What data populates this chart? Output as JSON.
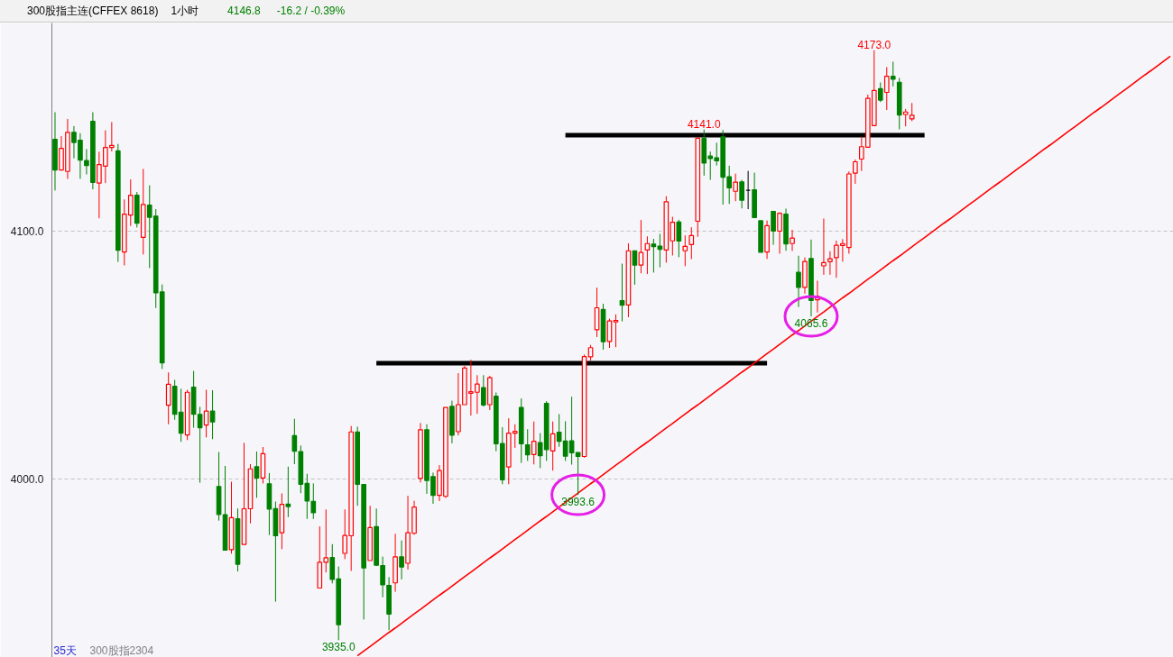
{
  "chart_data": {
    "type": "candlestick",
    "title": "300股指主连(CFFEX 8618)",
    "subtitle": "1小时",
    "categories": [
      null,
      null,
      null,
      null,
      null,
      null,
      null,
      null,
      null,
      null,
      null,
      null,
      null,
      null,
      null,
      null,
      null,
      null,
      null,
      null,
      null,
      null,
      null,
      null,
      null,
      null,
      null,
      null,
      null,
      null,
      null,
      null,
      null,
      null,
      null,
      null,
      null,
      null,
      null,
      null,
      null,
      null,
      null,
      null,
      null,
      null,
      null,
      null,
      null,
      null,
      null,
      null,
      null,
      null,
      null,
      null,
      null,
      null,
      null,
      null,
      null,
      null,
      null,
      null,
      null,
      null,
      null,
      null,
      null,
      null,
      null,
      null,
      null,
      null,
      null,
      null,
      null,
      null,
      null,
      null,
      null,
      null,
      null,
      null,
      null,
      null,
      null,
      null,
      null,
      null,
      null,
      null,
      null,
      null,
      null,
      null,
      null,
      null,
      null,
      null,
      null,
      null,
      null,
      null,
      null,
      null,
      null,
      null,
      null,
      null,
      null,
      null,
      null,
      null,
      null,
      null,
      null,
      null,
      null,
      null,
      null,
      null,
      null,
      null,
      null,
      null,
      null,
      null,
      null,
      null,
      null,
      null,
      null,
      null,
      null,
      null,
      null,
      null,
      null,
      null,
      null,
      null,
      null,
      null,
      null,
      null,
      null,
      null,
      null,
      null,
      null,
      null,
      null,
      null,
      null,
      null,
      null,
      null,
      null,
      null,
      null,
      null,
      null,
      null,
      null,
      null,
      null,
      null,
      null,
      null,
      null,
      null,
      null,
      null,
      null,
      null,
      null,
      null
    ],
    "ohlc": [
      [
        4137.1,
        4148.0,
        4116.4,
        4124.7
      ],
      [
        4124.7,
        4138.4,
        4124.7,
        4133.4
      ],
      [
        4124.1,
        4145.3,
        4121.1,
        4139.9
      ],
      [
        4139.9,
        4142.4,
        4129.4,
        4135.8
      ],
      [
        4136.7,
        4139.5,
        4121.1,
        4128.7
      ],
      [
        4128.5,
        4133.1,
        4122.9,
        4126.5
      ],
      [
        4144.3,
        4148.0,
        4116.9,
        4119.7
      ],
      [
        4119.4,
        4132.0,
        4105.2,
        4126.9
      ],
      [
        4126.2,
        4140.7,
        4119.4,
        4133.8
      ],
      [
        4133.8,
        4144.0,
        4132.2,
        4134.6
      ],
      [
        4132.4,
        4135.2,
        4087.6,
        4092.3
      ],
      [
        4091.6,
        4112.8,
        4086.2,
        4106.9
      ],
      [
        4106.5,
        4120.9,
        4102.1,
        4114.5
      ],
      [
        4114.5,
        4115.8,
        4101.5,
        4103.2
      ],
      [
        4097.5,
        4125.1,
        4090.6,
        4110.8
      ],
      [
        4110.5,
        4118.5,
        4085.1,
        4105.6
      ],
      [
        4106.1,
        4108.9,
        4069.0,
        4075.1
      ],
      [
        4075.5,
        4078.5,
        4044.4,
        4046.9
      ],
      [
        4029.8,
        4043.0,
        4022.1,
        4038.2
      ],
      [
        4037.4,
        4040.0,
        4023.9,
        4026.1
      ],
      [
        4027.0,
        4036.4,
        4015.0,
        4018.5
      ],
      [
        4017.8,
        4036.0,
        4015.7,
        4035.0
      ],
      [
        4037.1,
        4043.6,
        4020.7,
        4026.1
      ],
      [
        4026.1,
        4029.1,
        3998.5,
        4020.7
      ],
      [
        4021.8,
        4036.0,
        4016.8,
        4027.4
      ],
      [
        4027.4,
        4035.8,
        4016.1,
        4023.0
      ],
      [
        3997.0,
        4010.9,
        3983.2,
        3985.7
      ],
      [
        3985.6,
        4005.3,
        3971.3,
        3971.3
      ],
      [
        3971.5,
        3998.9,
        3969.9,
        3984.4
      ],
      [
        3984.0,
        3988.1,
        3962.7,
        3965.6
      ],
      [
        3973.6,
        4014.6,
        3973.6,
        3988.0
      ],
      [
        3988.0,
        4006.0,
        3982.1,
        4004.1
      ],
      [
        4005.0,
        4011.1,
        3992.4,
        4000.4
      ],
      [
        4000.4,
        4012.9,
        3998.2,
        4010.2
      ],
      [
        3998.1,
        4002.4,
        3977.4,
        3987.9
      ],
      [
        3988.1,
        3990.9,
        3950.5,
        3977.1
      ],
      [
        3978.3,
        3994.2,
        3971.7,
        3989.8
      ],
      [
        3989.9,
        4005.0,
        3984.6,
        3988.9
      ],
      [
        4017.5,
        4024.3,
        4006.0,
        4011.2
      ],
      [
        4011.1,
        4013.5,
        3994.3,
        3997.9
      ],
      [
        3998.2,
        4002.1,
        3983.9,
        3991.1
      ],
      [
        3991.0,
        3998.2,
        3983.9,
        3986.4
      ],
      [
        3956.0,
        3980.9,
        3956.0,
        3966.4
      ],
      [
        3966.4,
        3987.7,
        3962.3,
        3968.2
      ],
      [
        3968.3,
        3973.7,
        3957.9,
        3959.5
      ],
      [
        3959.7,
        3964.7,
        3935.0,
        3941.2
      ],
      [
        3970.0,
        3987.7,
        3967.7,
        3977.2
      ],
      [
        3977.1,
        4021.4,
        3962.9,
        4019.0
      ],
      [
        4019.0,
        4021.1,
        3989.2,
        3997.9
      ],
      [
        3997.8,
        3997.8,
        3943.3,
        3964.1
      ],
      [
        3967.1,
        3989.2,
        3967.1,
        3980.4
      ],
      [
        3980.8,
        3988.1,
        3964.9,
        3965.2
      ],
      [
        3965.1,
        3968.7,
        3952.3,
        3957.3
      ],
      [
        3957.1,
        3960.4,
        3939.0,
        3945.5
      ],
      [
        3958.1,
        3977.9,
        3954.5,
        3968.6
      ],
      [
        3968.6,
        3975.2,
        3959.5,
        3964.5
      ],
      [
        3966.0,
        3993.2,
        3963.5,
        3978.3
      ],
      [
        3978.1,
        3991.2,
        3977.5,
        3988.7
      ],
      [
        4000.2,
        4022.6,
        3998.6,
        4019.9
      ],
      [
        4019.9,
        4022.1,
        3994.0,
        3999.4
      ],
      [
        4001.0,
        4002.6,
        3990.0,
        3993.4
      ],
      [
        3993.4,
        4005.6,
        3991.1,
        4003.4
      ],
      [
        3993.0,
        4028.9,
        3992.4,
        4028.9
      ],
      [
        4029.3,
        4031.6,
        4014.4,
        4017.7
      ],
      [
        4019.1,
        4042.7,
        4017.6,
        4030.0
      ],
      [
        4030.0,
        4045.6,
        4030.0,
        4044.8
      ],
      [
        4034.6,
        4048.1,
        4025.6,
        4035.2
      ],
      [
        4035.0,
        4041.9,
        4026.3,
        4038.3
      ],
      [
        4036.9,
        4041.9,
        4029.2,
        4029.9
      ],
      [
        4030.0,
        4041.6,
        4027.8,
        4040.9
      ],
      [
        4033.4,
        4034.9,
        4011.2,
        4014.2
      ],
      [
        4014.3,
        4020.9,
        3997.9,
        3999.7
      ],
      [
        4004.9,
        4024.5,
        3997.9,
        4018.5
      ],
      [
        4018.5,
        4022.1,
        4012.6,
        4019.2
      ],
      [
        4028.9,
        4032.5,
        4006.5,
        4014.2
      ],
      [
        4013.8,
        4020.1,
        4007.3,
        4009.8
      ],
      [
        4009.9,
        4023.2,
        4005.9,
        4015.2
      ],
      [
        4014.7,
        4018.5,
        4004.4,
        4009.4
      ],
      [
        4030.5,
        4031.4,
        4007.3,
        4011.9
      ],
      [
        4011.3,
        4023.2,
        4003.4,
        4018.2
      ],
      [
        4018.9,
        4026.2,
        4013.0,
        4015.2
      ],
      [
        4015.3,
        4023.3,
        4007.3,
        4009.2
      ],
      [
        4015.4,
        4033.2,
        4005.8,
        4010.6
      ],
      [
        4010.7,
        4010.7,
        3993.6,
        4009.1
      ],
      [
        4009.1,
        4050.2,
        4008.6,
        4049.4
      ],
      [
        4049.3,
        4054.1,
        4047.7,
        4053.0
      ],
      [
        4060.2,
        4077.2,
        4057.3,
        4069.1
      ],
      [
        4068.4,
        4070.7,
        4052.2,
        4055.4
      ],
      [
        4055.5,
        4064.7,
        4052.9,
        4063.8
      ],
      [
        4063.4,
        4066.4,
        4053.2,
        4064.0
      ],
      [
        4072.0,
        4086.9,
        4063.6,
        4070.1
      ],
      [
        4070.2,
        4095.1,
        4065.3,
        4092.1
      ],
      [
        4092.1,
        4092.1,
        4078.4,
        4086.3
      ],
      [
        4086.3,
        4104.5,
        4083.0,
        4091.4
      ],
      [
        4092.4,
        4097.9,
        4082.7,
        4095.0
      ],
      [
        4094.8,
        4096.9,
        4083.3,
        4093.8
      ],
      [
        4094.0,
        4098.9,
        4085.4,
        4092.7
      ],
      [
        4092.4,
        4114.1,
        4087.3,
        4111.9
      ],
      [
        4096.1,
        4105.8,
        4090.2,
        4103.6
      ],
      [
        4103.7,
        4104.6,
        4089.5,
        4096.0
      ],
      [
        4092.1,
        4098.3,
        4085.9,
        4093.9
      ],
      [
        4094.6,
        4101.6,
        4088.7,
        4098.2
      ],
      [
        4104.0,
        4137.9,
        4097.7,
        4137.5
      ],
      [
        4137.5,
        4141.0,
        4122.4,
        4127.5
      ],
      [
        4130.3,
        4132.1,
        4120.7,
        4129.3
      ],
      [
        4129.6,
        4135.7,
        4126.5,
        4128.4
      ],
      [
        4138.1,
        4140.8,
        4110.7,
        4121.8
      ],
      [
        4122.0,
        4126.4,
        4111.0,
        4117.5
      ],
      [
        4116.1,
        4123.2,
        4112.1,
        4119.8
      ],
      [
        4119.9,
        4120.7,
        4109.2,
        4112.5
      ],
      [
        4116.5,
        4124.3,
        4108.9,
        4116.5
      ],
      [
        4116.7,
        4123.6,
        4105.3,
        4105.5
      ],
      [
        4104.2,
        4104.2,
        4091.5,
        4091.5
      ],
      [
        4091.6,
        4104.3,
        4088.8,
        4102.2
      ],
      [
        4108.0,
        4108.0,
        4094.5,
        4100.0
      ],
      [
        4100.0,
        4107.6,
        4090.9,
        4107.2
      ],
      [
        4106.9,
        4109.1,
        4092.1,
        4094.9
      ],
      [
        4095.0,
        4100.5,
        4092.0,
        4097.2
      ],
      [
        4083.4,
        4090.1,
        4069.4,
        4077.3
      ],
      [
        4077.3,
        4089.4,
        4074.8,
        4087.8
      ],
      [
        4089.0,
        4096.6,
        4065.6,
        4072.0
      ],
      [
        4072.3,
        4080.0,
        4067.2,
        4073.7
      ],
      [
        4086.0,
        4105.1,
        4082.4,
        4087.3
      ],
      [
        4087.7,
        4091.9,
        4082.4,
        4088.9
      ],
      [
        4089.3,
        4096.2,
        4081.2,
        4094.3
      ],
      [
        4094.2,
        4096.8,
        4087.7,
        4095.0
      ],
      [
        4093.4,
        4124.1,
        4090.9,
        4123.1
      ],
      [
        4123.4,
        4128.9,
        4119.1,
        4128.0
      ],
      [
        4129.1,
        4138.1,
        4124.3,
        4134.1
      ],
      [
        4133.9,
        4155.1,
        4133.9,
        4153.6
      ],
      [
        4142.6,
        4173.0,
        4142.6,
        4156.8
      ],
      [
        4157.5,
        4160.0,
        4152.1,
        4152.9
      ],
      [
        4156.0,
        4166.2,
        4148.9,
        4162.5
      ],
      [
        4162.5,
        4168.4,
        4158.4,
        4161.3
      ],
      [
        4160.1,
        4161.8,
        4141.1,
        4146.9
      ],
      [
        4147.1,
        4149.3,
        4142.3,
        4148.1
      ],
      [
        4145.3,
        4151.7,
        4144.4,
        4146.8
      ],
      null,
      null,
      null,
      null,
      null,
      null,
      null,
      null,
      null,
      null,
      null,
      null,
      null,
      null,
      null,
      null,
      null,
      null,
      null,
      null,
      null,
      null,
      null,
      null,
      null,
      null,
      null,
      null,
      null,
      null,
      null,
      null,
      null,
      null,
      null,
      null,
      null,
      null,
      null,
      null,
      null
    ],
    "colors": [
      "#008000",
      "#ff0000",
      "#ff0000",
      "#008000",
      "#008000",
      "#008000",
      "#008000",
      "#ff0000",
      "#ff0000",
      "#ff0000",
      "#008000",
      "#ff0000",
      "#ff0000",
      "#008000",
      "#ff0000",
      "#008000",
      "#008000",
      "#008000",
      "#ff0000",
      "#008000",
      "#008000",
      "#ff0000",
      "#008000",
      "#008000",
      "#ff0000",
      "#008000",
      "#008000",
      "#008000",
      "#ff0000",
      "#008000",
      "#ff0000",
      "#ff0000",
      "#008000",
      "#ff0000",
      "#008000",
      "#008000",
      "#ff0000",
      "#008000",
      "#008000",
      "#008000",
      "#008000",
      "#008000",
      "#ff0000",
      "#ff0000",
      "#008000",
      "#008000",
      "#ff0000",
      "#ff0000",
      "#008000",
      "#008000",
      "#ff0000",
      "#008000",
      "#008000",
      "#008000",
      "#ff0000",
      "#008000",
      "#ff0000",
      "#ff0000",
      "#ff0000",
      "#008000",
      "#008000",
      "#ff0000",
      "#ff0000",
      "#008000",
      "#ff0000",
      "#ff0000",
      "#ff0000",
      "#ff0000",
      "#008000",
      "#ff0000",
      "#008000",
      "#008000",
      "#ff0000",
      "#ff0000",
      "#008000",
      "#008000",
      "#ff0000",
      "#008000",
      "#008000",
      "#ff0000",
      "#008000",
      "#008000",
      "#008000",
      "#008000",
      "#ff0000",
      "#ff0000",
      "#ff0000",
      "#008000",
      "#ff0000",
      "#ff0000",
      "#008000",
      "#ff0000",
      "#008000",
      "#ff0000",
      "#ff0000",
      "#008000",
      "#008000",
      "#ff0000",
      "#ff0000",
      "#008000",
      "#ff0000",
      "#ff0000",
      "#ff0000",
      "#008000",
      "#008000",
      "#008000",
      "#008000",
      "#008000",
      "#ff0000",
      "#008000",
      "#000000",
      "#008000",
      "#008000",
      "#ff0000",
      "#008000",
      "#ff0000",
      "#008000",
      "#ff0000",
      "#008000",
      "#ff0000",
      "#008000",
      "#ff0000",
      "#ff0000",
      "#ff0000",
      "#ff0000",
      "#ff0000",
      "#ff0000",
      "#ff0000",
      "#ff0000",
      "#ff0000",
      "#ff0000",
      "#008000",
      "#ff0000",
      "#008000",
      "#008000",
      "#ff0000",
      "#ff0000",
      null,
      null,
      null,
      null,
      null,
      null,
      null,
      null,
      null,
      null,
      null,
      null,
      null,
      null,
      null,
      null,
      null,
      null,
      null,
      null,
      null,
      null,
      null,
      null,
      null,
      null,
      null,
      null,
      null,
      null,
      null,
      null,
      null,
      null,
      null,
      null,
      null,
      null,
      null,
      null,
      null
    ],
    "series": [
      {
        "type": "line",
        "color": "#000000",
        "values": [
          null,
          null,
          null,
          null,
          null,
          null,
          null,
          null,
          null,
          null,
          null,
          null,
          null,
          null,
          null,
          null,
          null,
          null,
          null,
          null,
          null,
          null,
          null,
          null,
          null,
          null,
          null,
          null,
          null,
          null,
          null,
          null,
          null,
          null,
          null,
          null,
          null,
          null,
          null,
          null,
          null,
          null,
          null,
          null,
          null,
          null,
          null,
          null,
          null,
          null,
          null,
          4046.7,
          4046.7,
          4046.7,
          4046.7,
          4046.7,
          4046.7,
          4046.7,
          4046.7,
          4046.7,
          4046.7,
          4046.7,
          4046.7,
          4046.7,
          4046.7,
          4046.7,
          4046.7,
          4046.7,
          4046.7,
          4046.7,
          4046.7,
          4046.7,
          4046.7,
          4046.7,
          4046.7,
          4046.7,
          4046.7,
          4046.7,
          4046.7,
          4046.7,
          4046.7,
          4046.7,
          4046.7,
          4046.7,
          4046.7,
          4046.7,
          4046.7,
          4046.7,
          4046.7,
          4046.7,
          4046.7,
          4046.7,
          4046.7,
          4046.7,
          4046.7,
          4046.7,
          4046.7,
          4046.7,
          4046.7,
          4046.7,
          4046.7,
          4046.7,
          4046.7,
          4046.7,
          4046.7,
          4046.7,
          4046.7,
          4046.7,
          4046.7,
          4046.7,
          4046.7,
          4046.7,
          4046.7,
          4046.7,
          null,
          null,
          null,
          null,
          null,
          null,
          null,
          null,
          null,
          null,
          null,
          null,
          null,
          null,
          null,
          null,
          null,
          null,
          null,
          null,
          null,
          null,
          null,
          null,
          null,
          null,
          null,
          null,
          null,
          null,
          null,
          null,
          null,
          null,
          null,
          null,
          null,
          null,
          null,
          null,
          null,
          null,
          null,
          null,
          null,
          null,
          null,
          null,
          null,
          null,
          null,
          null,
          null,
          null,
          null,
          null,
          null,
          null,
          null,
          null,
          null,
          null,
          null,
          null
        ]
      },
      {
        "type": "line",
        "color": "#000000",
        "values": [
          null,
          null,
          null,
          null,
          null,
          null,
          null,
          null,
          null,
          null,
          null,
          null,
          null,
          null,
          null,
          null,
          null,
          null,
          null,
          null,
          null,
          null,
          null,
          null,
          null,
          null,
          null,
          null,
          null,
          null,
          null,
          null,
          null,
          null,
          null,
          null,
          null,
          null,
          null,
          null,
          null,
          null,
          null,
          null,
          null,
          null,
          null,
          null,
          null,
          null,
          null,
          null,
          null,
          null,
          null,
          null,
          null,
          null,
          null,
          null,
          null,
          null,
          null,
          null,
          null,
          null,
          null,
          null,
          null,
          null,
          null,
          null,
          null,
          null,
          null,
          null,
          null,
          null,
          null,
          null,
          null,
          4138.7,
          4138.7,
          4138.7,
          4138.7,
          4138.7,
          4138.7,
          4138.7,
          4138.7,
          4138.7,
          4138.7,
          4138.7,
          4138.7,
          4138.7,
          4138.7,
          4138.7,
          4138.7,
          4138.7,
          4138.7,
          4138.7,
          4138.7,
          4138.7,
          4138.7,
          4138.7,
          4138.7,
          4138.7,
          4138.7,
          4138.7,
          4138.7,
          4138.7,
          4138.7,
          4138.7,
          4138.7,
          4138.7,
          4138.7,
          4138.7,
          4138.7,
          4138.7,
          4138.7,
          4138.7,
          4138.7,
          4138.7,
          4138.7,
          4138.7,
          4138.7,
          4138.7,
          4138.7,
          4138.7,
          4138.7,
          4138.7,
          4138.7,
          4138.7,
          4138.7,
          4138.7,
          4138.7,
          4138.7,
          4138.7,
          4138.7,
          4138.7,
          null,
          null,
          null,
          null,
          null,
          null,
          null,
          null,
          null,
          null,
          null,
          null,
          null,
          null,
          null,
          null,
          null,
          null,
          null,
          null,
          null,
          null,
          null,
          null,
          null,
          null,
          null,
          null,
          null,
          null,
          null,
          null,
          null,
          null,
          null,
          null,
          null,
          null,
          null
        ]
      },
      {
        "type": "line",
        "color": "#ff0000",
        "values": [
          null,
          null,
          null,
          null,
          null,
          null,
          null,
          null,
          null,
          null,
          null,
          null,
          null,
          null,
          null,
          null,
          null,
          null,
          null,
          null,
          null,
          null,
          null,
          null,
          null,
          null,
          null,
          null,
          null,
          null,
          null,
          null,
          null,
          null,
          null,
          null,
          null,
          null,
          null,
          null,
          null,
          null,
          null,
          null,
          null,
          null,
          null,
          null,
          3928.7,
          3930.6,
          3932.4,
          3934.3,
          3936.2,
          3938.1,
          3939.9,
          3941.8,
          3943.7,
          3945.6,
          3947.4,
          3949.3,
          3951.2,
          3953.1,
          3954.9,
          3956.8,
          3958.7,
          3960.6,
          3962.4,
          3964.3,
          3966.2,
          3968.1,
          3969.9,
          3971.8,
          3973.7,
          3975.6,
          3977.4,
          3979.3,
          3981.2,
          3983.1,
          3984.9,
          3986.8,
          3988.7,
          3990.6,
          3992.4,
          3994.3,
          3996.2,
          3998.1,
          3999.9,
          4001.8,
          4003.7,
          4005.6,
          4007.4,
          4009.3,
          4011.2,
          4013.1,
          4014.9,
          4016.8,
          4018.7,
          4020.6,
          4022.4,
          4024.3,
          4026.2,
          4028.1,
          4029.9,
          4031.8,
          4033.7,
          4035.6,
          4037.4,
          4039.3,
          4041.2,
          4043.1,
          4044.9,
          4046.8,
          4048.7,
          4050.6,
          4052.4,
          4054.3,
          4056.2,
          4058.1,
          4059.9,
          4061.8,
          4063.7,
          4065.6,
          4067.4,
          4069.3,
          4071.2,
          4073.1,
          4074.9,
          4076.8,
          4078.7,
          4080.6,
          4082.4,
          4084.3,
          4086.2,
          4088.1,
          4089.9,
          4091.8,
          4093.7,
          4095.6,
          4097.4,
          4099.3,
          4101.2,
          4103.1,
          4104.9,
          4106.8,
          4108.7,
          4110.6,
          4112.4,
          4114.3,
          4116.2,
          4118.1,
          4119.9,
          4121.8,
          4123.7,
          4125.6,
          4127.4,
          4129.3,
          4131.2,
          4133.1,
          4134.9,
          4136.8,
          4138.7,
          4140.6,
          4142.4,
          4144.3,
          4146.2,
          4148.1,
          4149.9,
          4151.8,
          4153.7,
          4155.6,
          4157.4,
          4159.3,
          4161.2,
          4163.1,
          4164.9,
          4166.8,
          4168.7,
          4170.6
        ]
      }
    ],
    "ylim": [
      3928,
      4184
    ],
    "yticks": [
      {
        "value": 4000,
        "label": "4000.0"
      },
      {
        "value": 4100,
        "label": "4100.0"
      }
    ],
    "grid": "y",
    "tick_labels": "y",
    "annotations": [
      {
        "text": "4173.0",
        "y": 4173.0
      },
      {
        "text": "4141.0",
        "y": 4141.0
      },
      {
        "text": "4065.6",
        "y": 4065.6
      },
      {
        "text": "3993.6",
        "y": 3993.6
      },
      {
        "text": "3935.0",
        "y": 3935.0
      },
      "4146.8",
      "-16.2 / -0.39%",
      "35天",
      "300股指2304"
    ]
  }
}
